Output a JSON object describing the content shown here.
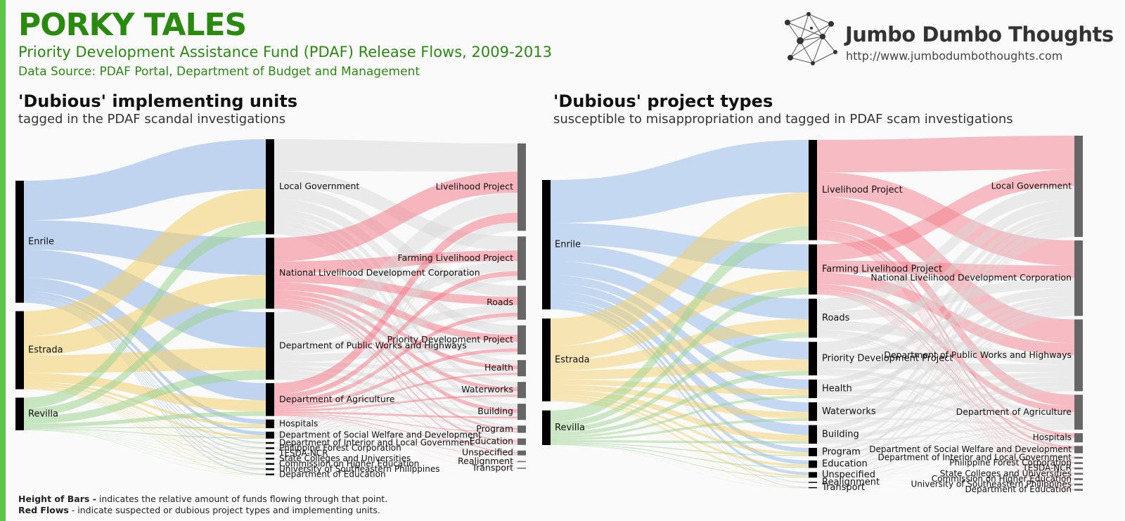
{
  "header": {
    "title": "PORKY TALES",
    "subtitle": "Priority Development Assistance Fund (PDAF) Release Flows, 2009-2013",
    "source": "Data Source: PDAF Portal, Department of Budget and Management"
  },
  "brand": {
    "name": "Jumbo Dumbo Thoughts",
    "url": "http://www.jumbodumbothoughts.com"
  },
  "colors": {
    "enrile": "#8fb5e8",
    "estrada": "#f2cf6a",
    "revilla": "#9cd38f",
    "dubious": "#f47e8c",
    "neutral": "#d6d6d6",
    "accent": "#2a8a10"
  },
  "left_panel": {
    "title": "'Dubious' implementing units",
    "subtitle": "tagged in the PDAF scandal investigations",
    "senators": [
      {
        "name": "Enrile",
        "value": 172
      },
      {
        "name": "Estrada",
        "value": 110
      },
      {
        "name": "Revilla",
        "value": 46
      }
    ],
    "units": [
      {
        "name": "Local Government",
        "value": 110,
        "dubious": false
      },
      {
        "name": "National Livelihood Development Corporation",
        "value": 82,
        "dubious": true
      },
      {
        "name": "Department of Public Works and Highways",
        "value": 78,
        "dubious": false
      },
      {
        "name": "Department of Agriculture",
        "value": 38,
        "dubious": true
      },
      {
        "name": "Hospitals",
        "value": 10,
        "dubious": false
      },
      {
        "name": "Department of Social Welfare and Development",
        "value": 8,
        "dubious": false
      },
      {
        "name": "Department of Interior and Local Government",
        "value": 2,
        "dubious": false
      },
      {
        "name": "Philippine Forest Corporation",
        "value": 2,
        "dubious": false
      },
      {
        "name": "TESDA-NCR",
        "value": 2,
        "dubious": false
      },
      {
        "name": "State Colleges and Universities",
        "value": 2,
        "dubious": false
      },
      {
        "name": "Commission on Higher Education",
        "value": 2,
        "dubious": false
      },
      {
        "name": "University of Southeastern Philippines",
        "value": 2,
        "dubious": false
      },
      {
        "name": "Department of Education",
        "value": 2,
        "dubious": false
      }
    ],
    "projects": [
      {
        "name": "Livelihood Project",
        "value": 108
      },
      {
        "name": "Farming Livelihood Project",
        "value": 54
      },
      {
        "name": "Roads",
        "value": 42
      },
      {
        "name": "Priority Development Project",
        "value": 36
      },
      {
        "name": "Health",
        "value": 20
      },
      {
        "name": "Waterworks",
        "value": 20
      },
      {
        "name": "Building",
        "value": 20
      },
      {
        "name": "Program",
        "value": 9
      },
      {
        "name": "Education",
        "value": 8
      },
      {
        "name": "Unspecified",
        "value": 6
      },
      {
        "name": "Realignment",
        "value": 1
      },
      {
        "name": "Transport",
        "value": 1
      }
    ]
  },
  "right_panel": {
    "title": "'Dubious' project types",
    "subtitle": "susceptible to misappropriation and tagged in PDAF scam investigations",
    "senators": [
      {
        "name": "Enrile",
        "value": 172
      },
      {
        "name": "Estrada",
        "value": 110
      },
      {
        "name": "Revilla",
        "value": 46
      }
    ],
    "projects": [
      {
        "name": "Livelihood Project",
        "value": 108,
        "dubious": true
      },
      {
        "name": "Farming Livelihood Project",
        "value": 54,
        "dubious": true
      },
      {
        "name": "Roads",
        "value": 42,
        "dubious": false
      },
      {
        "name": "Priority Development Project",
        "value": 36,
        "dubious": false
      },
      {
        "name": "Health",
        "value": 20,
        "dubious": false
      },
      {
        "name": "Waterworks",
        "value": 20,
        "dubious": false
      },
      {
        "name": "Building",
        "value": 20,
        "dubious": false
      },
      {
        "name": "Program",
        "value": 9,
        "dubious": false
      },
      {
        "name": "Education",
        "value": 8,
        "dubious": false
      },
      {
        "name": "Unspecified",
        "value": 6,
        "dubious": false
      },
      {
        "name": "Realignment",
        "value": 1,
        "dubious": false
      },
      {
        "name": "Transport",
        "value": 1,
        "dubious": false
      }
    ],
    "units": [
      {
        "name": "Local Government",
        "value": 110
      },
      {
        "name": "National Livelihood Development Corporation",
        "value": 82
      },
      {
        "name": "Department of Public Works and Highways",
        "value": 78
      },
      {
        "name": "Department of Agriculture",
        "value": 38
      },
      {
        "name": "Hospitals",
        "value": 10
      },
      {
        "name": "Department of Social Welfare and Development",
        "value": 8
      },
      {
        "name": "Department of Interior and Local Government",
        "value": 2
      },
      {
        "name": "Philippine Forest Corporation",
        "value": 2
      },
      {
        "name": "TESDA-NCR",
        "value": 2
      },
      {
        "name": "State Colleges and Universities",
        "value": 2
      },
      {
        "name": "Commission on Higher Education",
        "value": 2
      },
      {
        "name": "University of Southeastern Philippines",
        "value": 2
      },
      {
        "name": "Department of Education",
        "value": 2
      }
    ]
  },
  "legend": {
    "height_label": "Height of Bars -",
    "height_text": " indicates the relative amount of funds flowing through that point.",
    "red_label": "Red Flows",
    "red_text": "  - indicate suspected or dubious project types and implementing units."
  }
}
